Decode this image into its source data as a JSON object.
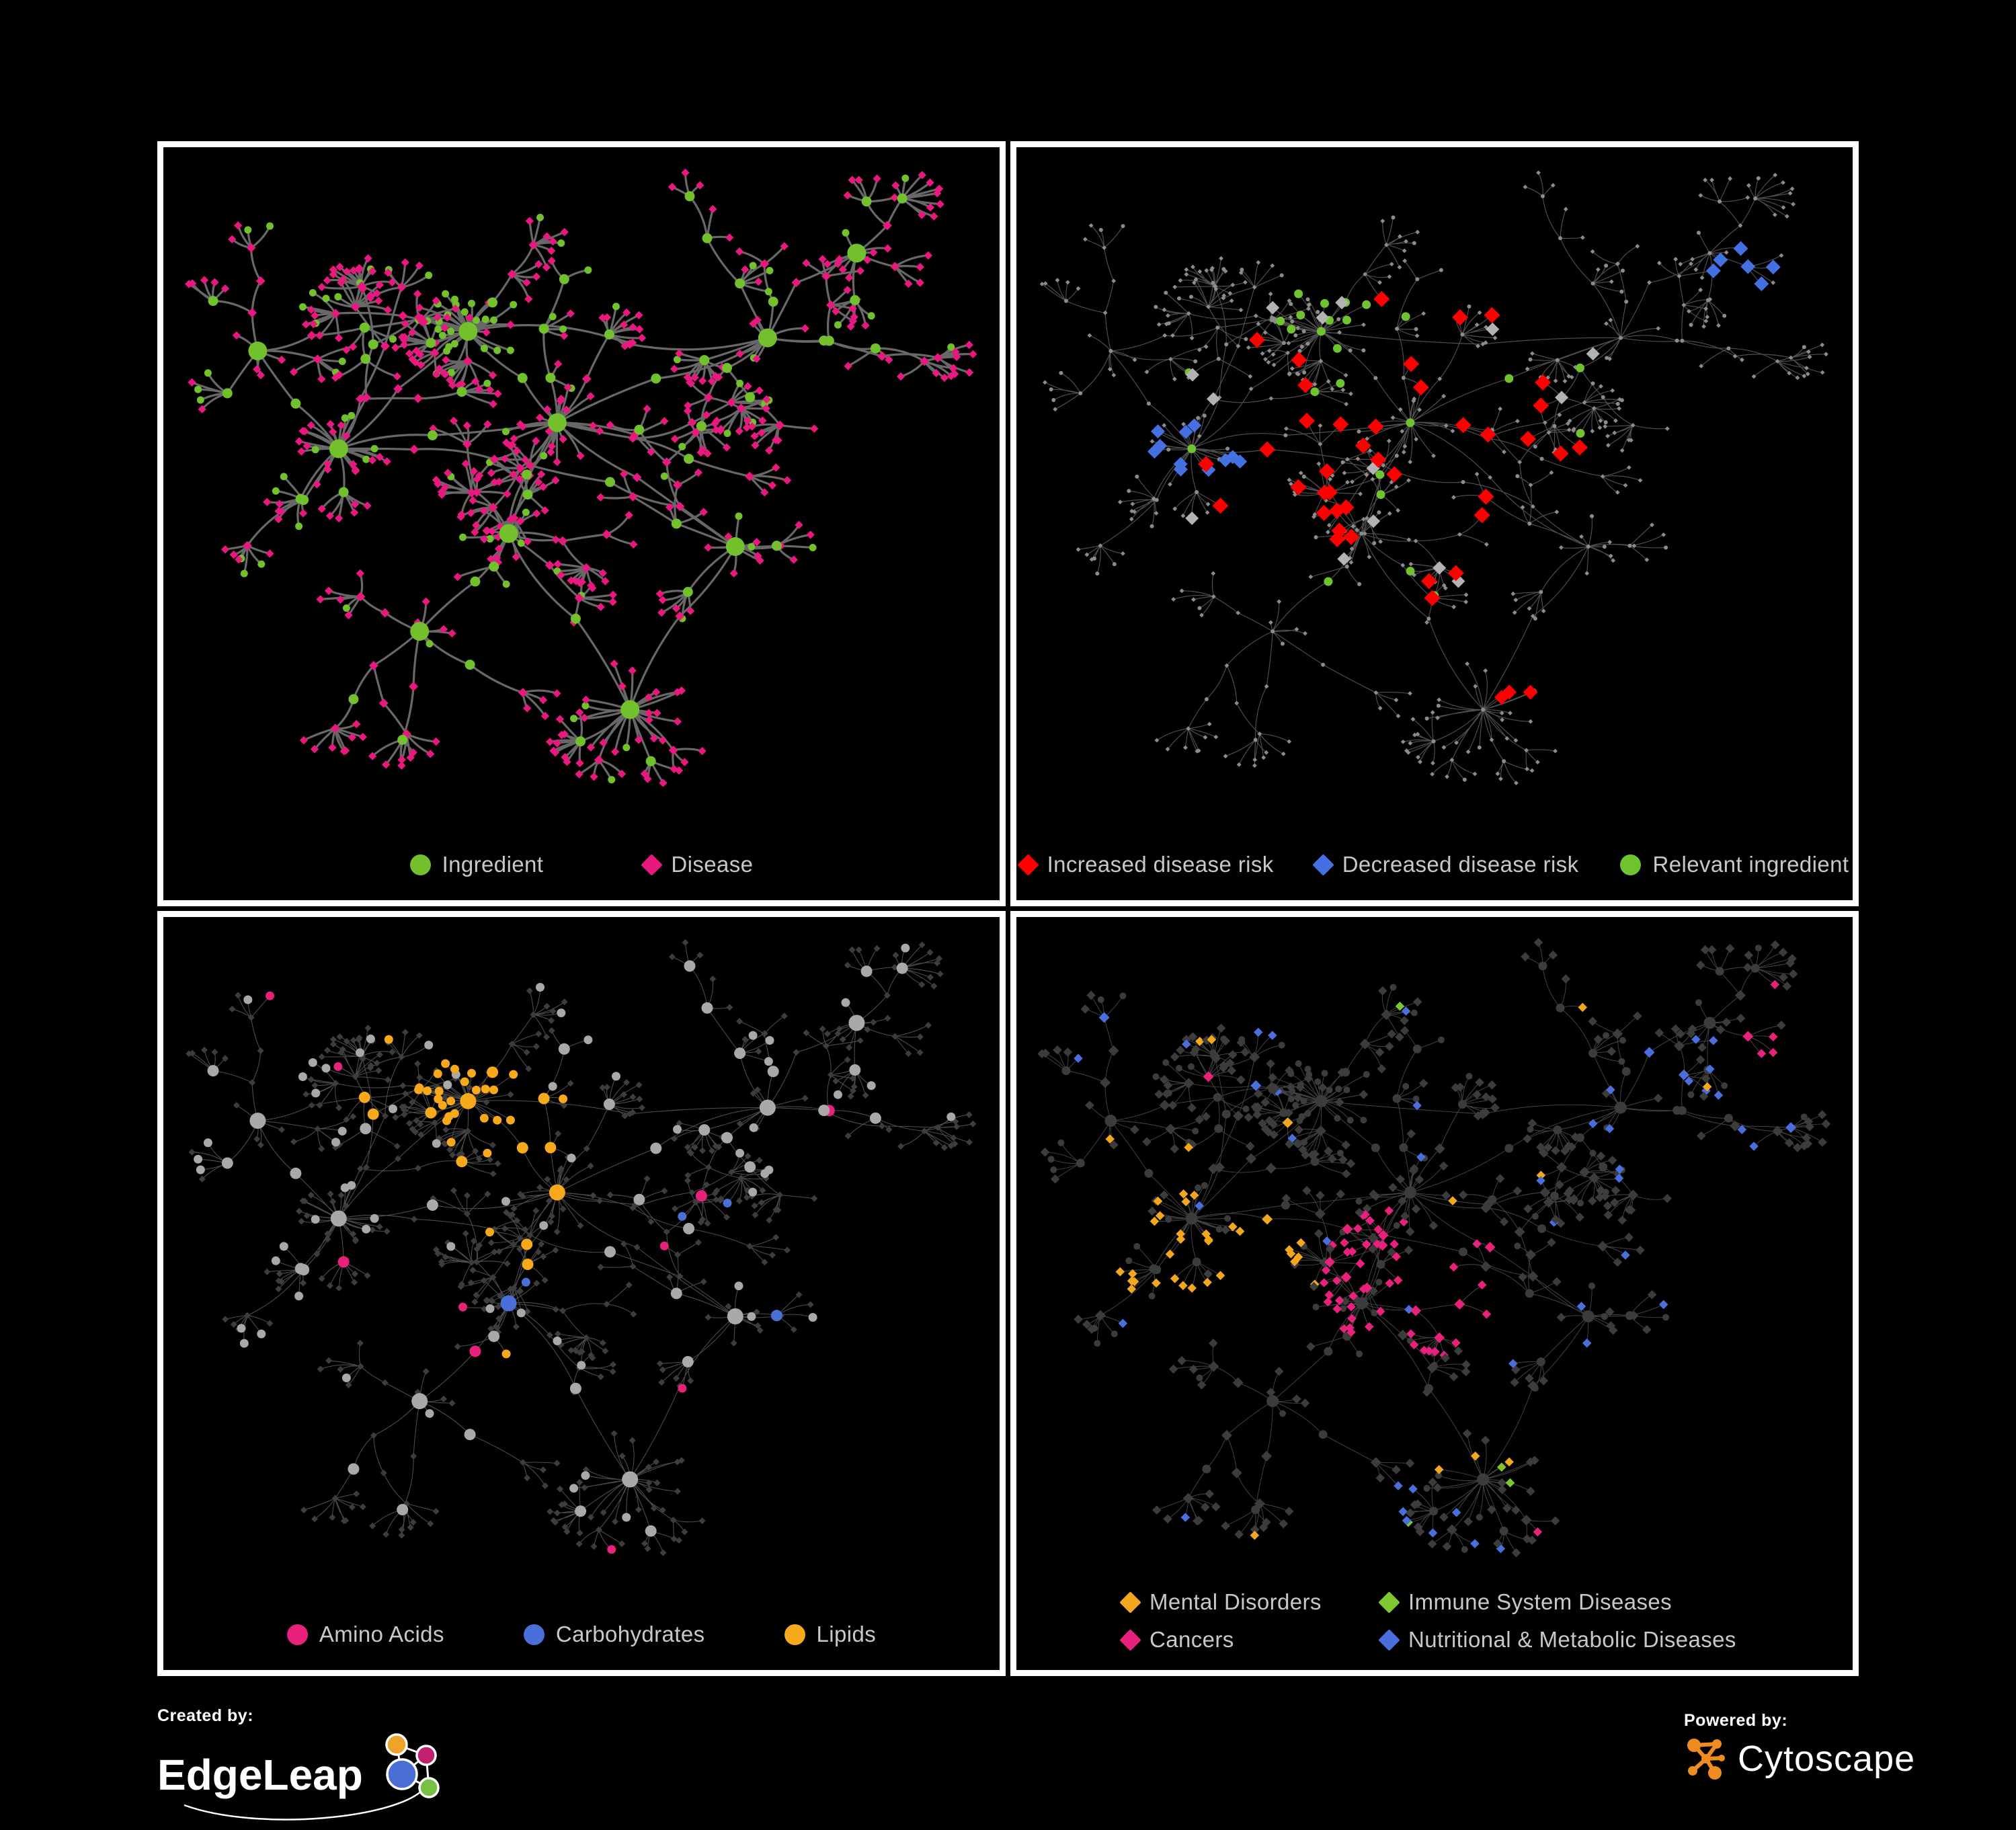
{
  "page": {
    "background": "#000000",
    "panel_border_color": "#ffffff",
    "legend_text_color": "#c8c8c8"
  },
  "panels": [
    {
      "id": "ingredient-disease",
      "legend_layout": "row",
      "legend": [
        {
          "label": "Ingredient",
          "shape": "circle",
          "color": "#72c02c"
        },
        {
          "label": "Disease",
          "shape": "diamond",
          "color": "#e8187f"
        }
      ],
      "palette": {
        "ingredient": "#72c02c",
        "disease": "#e8187f",
        "edge": "#6e6e6e"
      }
    },
    {
      "id": "disease-risk",
      "legend_layout": "row",
      "legend": [
        {
          "label": "Increased disease risk",
          "shape": "diamond",
          "color": "#fe0000"
        },
        {
          "label": "Decreased disease risk",
          "shape": "diamond",
          "color": "#4470e2"
        },
        {
          "label": "Relevant ingredient",
          "shape": "circle",
          "color": "#6fc32f"
        }
      ],
      "palette": {
        "base": "#8c8c8c",
        "edge": "#5e5e5e",
        "increased": "#fe0000",
        "decreased": "#4470e2",
        "neutral": "#b3b3b3",
        "relevant": "#6fc32f"
      }
    },
    {
      "id": "metabolite-classes",
      "legend_layout": "row",
      "legend": [
        {
          "label": "Amino Acids",
          "shape": "circle",
          "color": "#e8217d"
        },
        {
          "label": "Carbohydrates",
          "shape": "circle",
          "color": "#4a6fd9"
        },
        {
          "label": "Lipids",
          "shape": "circle",
          "color": "#f7a91b"
        }
      ],
      "palette": {
        "base_circle": "#a9a9a9",
        "base_diamond": "#3d3d3d",
        "edge": "#8f8f8f",
        "amino": "#e8217d",
        "carb": "#4a6fd9",
        "lipid": "#f7a91b"
      }
    },
    {
      "id": "disease-classes",
      "legend_layout": "grid",
      "legend": [
        {
          "label": "Mental Disorders",
          "shape": "diamond",
          "color": "#f3a71f"
        },
        {
          "label": "Immune System Diseases",
          "shape": "diamond",
          "color": "#7dc832"
        },
        {
          "label": "Cancers",
          "shape": "diamond",
          "color": "#e8217d"
        },
        {
          "label": "Nutritional & Metabolic Diseases",
          "shape": "diamond",
          "color": "#4a6fdc"
        }
      ],
      "palette": {
        "base": "#3c3c3c",
        "edge": "#8a8a8a",
        "mental": "#f3a71f",
        "immune": "#7dc832",
        "cancer": "#e8217d",
        "nutritional": "#4a6fdc"
      }
    }
  ],
  "footer": {
    "created_by_label": "Created by:",
    "edgeleap_name": "EdgeLeap",
    "powered_by_label": "Powered by:",
    "cytoscape_name": "Cytoscape",
    "edgeleap_colors": {
      "orange": "#f0a32a",
      "magenta": "#c21f6e",
      "blue": "#4a6fd4",
      "green": "#76c043"
    },
    "cytoscape_orange": "#ee8b21"
  }
}
